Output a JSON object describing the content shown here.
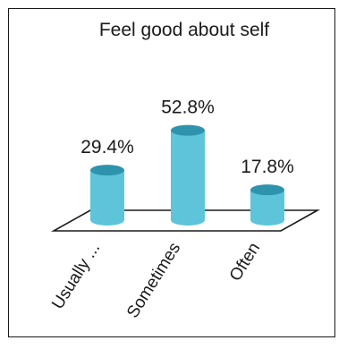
{
  "chart_data": {
    "type": "bar",
    "title": "Feel good about self",
    "categories": [
      "Usually ...",
      "Sometimes",
      "Often"
    ],
    "values": [
      29.4,
      52.8,
      17.8
    ],
    "data_labels": [
      "29.4%",
      "52.8%",
      "17.8%"
    ],
    "xlabel": "",
    "ylabel": "",
    "ylim": [
      0,
      60
    ],
    "grid": false,
    "legend": "none",
    "style": "3d-cylinder",
    "colors": {
      "bar_side": "#5ec4d9",
      "bar_top": "#2e93ad",
      "floor_stroke": "#1a1a1a",
      "text": "#1a1a1a"
    }
  }
}
